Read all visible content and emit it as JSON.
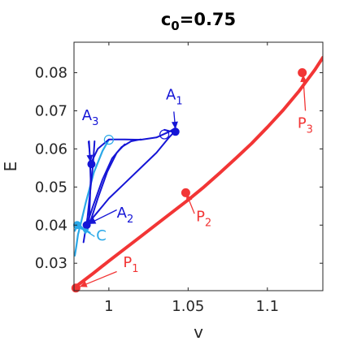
{
  "chart_data": {
    "type": "line",
    "title": {
      "base": "c",
      "sub": "0",
      "rest": "=0.75"
    },
    "xlabel": "v",
    "ylabel": "E",
    "xlim": [
      0.978,
      1.135
    ],
    "ylim": [
      0.0228,
      0.088
    ],
    "xticks": [
      1,
      1.05,
      1.1
    ],
    "xtick_labels": [
      "1",
      "1.05",
      "1.1"
    ],
    "yticks": [
      0.03,
      0.04,
      0.05,
      0.06,
      0.07,
      0.08
    ],
    "ytick_labels": [
      "0.03",
      "0.04",
      "0.05",
      "0.06",
      "0.07",
      "0.08"
    ],
    "grid": false,
    "colors": {
      "red": "#f23535",
      "blue": "#1515d6",
      "light_blue": "#2aa8e8"
    },
    "series": [
      {
        "color": "#f23535",
        "width": 4,
        "x": [
          0.978,
          0.99,
          1.0,
          1.01,
          1.02,
          1.03,
          1.04,
          1.05,
          1.06,
          1.07,
          1.08,
          1.09,
          1.1,
          1.11,
          1.12,
          1.13,
          1.135
        ],
        "y": [
          0.0235,
          0.0273,
          0.0306,
          0.0338,
          0.037,
          0.0402,
          0.0434,
          0.0466,
          0.05,
          0.0537,
          0.0575,
          0.0614,
          0.0657,
          0.0702,
          0.0752,
          0.0808,
          0.084
        ]
      },
      {
        "color": "#2aa8e8",
        "width": 2.2,
        "x": [
          0.9785,
          0.9795,
          0.9805,
          0.9825,
          0.9855,
          0.9905,
          0.996,
          1.0
        ],
        "y": [
          0.032,
          0.0345,
          0.0375,
          0.0408,
          0.046,
          0.0538,
          0.0595,
          0.0624
        ]
      },
      {
        "color": "#2aa8e8",
        "width": 2.2,
        "x": [
          0.9785,
          0.98,
          0.981,
          0.983
        ],
        "y": [
          0.0385,
          0.04,
          0.0398,
          0.039
        ]
      },
      {
        "color": "#2aa8e8",
        "width": 2.2,
        "x": [
          0.981,
          0.984,
          0.986,
          0.988
        ],
        "y": [
          0.0402,
          0.039,
          0.0385,
          0.038
        ]
      },
      {
        "color": "#1515d6",
        "width": 2,
        "x": [
          0.984,
          0.9865,
          0.9885,
          0.99,
          0.991
        ],
        "y": [
          0.0355,
          0.042,
          0.05,
          0.056,
          0.062
        ]
      },
      {
        "color": "#1515d6",
        "width": 2,
        "x": [
          0.9875,
          0.988,
          0.9885,
          0.988,
          0.9875
        ],
        "y": [
          0.062,
          0.058,
          0.052,
          0.046,
          0.041
        ]
      },
      {
        "color": "#1515d6",
        "width": 2,
        "x": [
          0.986,
          0.988,
          0.992,
          1.0,
          1.01,
          1.02,
          1.03,
          1.038,
          1.042
        ],
        "y": [
          0.04,
          0.041,
          0.043,
          0.047,
          0.051,
          0.055,
          0.059,
          0.063,
          0.0648
        ]
      },
      {
        "color": "#1515d6",
        "width": 2,
        "x": [
          0.986,
          0.99,
          0.996,
          1.002,
          1.008,
          1.014,
          1.02
        ],
        "y": [
          0.04,
          0.045,
          0.052,
          0.0575,
          0.0605,
          0.062,
          0.0625
        ]
      },
      {
        "color": "#1515d6",
        "width": 2,
        "x": [
          0.988,
          0.993,
          0.999,
          1.005,
          1.01
        ],
        "y": [
          0.0405,
          0.047,
          0.054,
          0.059,
          0.0612
        ]
      },
      {
        "color": "#1515d6",
        "width": 2,
        "x": [
          0.989,
          0.993,
          1.0,
          1.01,
          1.02,
          1.03,
          1.038,
          1.042
        ],
        "y": [
          0.0565,
          0.06,
          0.0625,
          0.0625,
          0.0624,
          0.063,
          0.0645,
          0.0655
        ]
      },
      {
        "color": "#1515d6",
        "width": 2,
        "x": [
          1.035,
          1.04,
          1.043
        ],
        "y": [
          0.065,
          0.0645,
          0.064
        ]
      }
    ],
    "points": [
      {
        "x": 0.9792,
        "y": 0.0235,
        "color": "#f23535",
        "style": "filled",
        "size": 5
      },
      {
        "x": 1.0485,
        "y": 0.0485,
        "color": "#f23535",
        "style": "filled",
        "size": 5
      },
      {
        "x": 1.122,
        "y": 0.08,
        "color": "#f23535",
        "style": "filled",
        "size": 5
      },
      {
        "x": 1.042,
        "y": 0.0645,
        "color": "#1515d6",
        "style": "filled",
        "size": 4.5
      },
      {
        "x": 0.986,
        "y": 0.04,
        "color": "#1515d6",
        "style": "filled",
        "size": 4.5
      },
      {
        "x": 0.989,
        "y": 0.056,
        "color": "#1515d6",
        "style": "filled",
        "size": 4.5
      },
      {
        "x": 0.98,
        "y": 0.04,
        "color": "#2aa8e8",
        "style": "filled",
        "size": 4.5
      },
      {
        "x": 1.0,
        "y": 0.0624,
        "color": "#2aa8e8",
        "style": "open",
        "size": 5.5
      },
      {
        "x": 1.035,
        "y": 0.0638,
        "color": "#1515d6",
        "style": "open",
        "size": 5.5
      }
    ],
    "annotations": [
      {
        "base": "P",
        "sub": "1",
        "color": "#f23535",
        "text_x": 1.009,
        "text_y": 0.029,
        "arrow_from": [
          1.005,
          0.0278
        ],
        "arrow_to": [
          0.9815,
          0.0238
        ]
      },
      {
        "base": "P",
        "sub": "2",
        "color": "#f23535",
        "text_x": 1.055,
        "text_y": 0.041,
        "arrow_from": [
          1.054,
          0.043
        ],
        "arrow_to": [
          1.049,
          0.0482
        ]
      },
      {
        "base": "P",
        "sub": "3",
        "color": "#f23535",
        "text_x": 1.119,
        "text_y": 0.0655,
        "arrow_from": [
          1.124,
          0.07
        ],
        "arrow_to": [
          1.1225,
          0.0795
        ]
      },
      {
        "base": "A",
        "sub": "1",
        "color": "#1515d6",
        "text_x": 1.036,
        "text_y": 0.073,
        "arrow_from": [
          1.041,
          0.0698
        ],
        "arrow_to": [
          1.042,
          0.0652
        ]
      },
      {
        "base": "A",
        "sub": "2",
        "color": "#1515d6",
        "text_x": 1.005,
        "text_y": 0.042,
        "arrow_from": [
          1.005,
          0.044
        ],
        "arrow_to": [
          0.987,
          0.0403
        ]
      },
      {
        "base": "A",
        "sub": "3",
        "color": "#1515d6",
        "text_x": 0.983,
        "text_y": 0.0675,
        "arrow_from": [
          0.987,
          0.062
        ],
        "arrow_to": [
          0.9885,
          0.0565
        ]
      },
      {
        "base": "C",
        "sub": "",
        "color": "#2aa8e8",
        "text_x": 0.992,
        "text_y": 0.036,
        "arrow_from": [
          0.991,
          0.037
        ],
        "arrow_to": [
          0.9825,
          0.0393
        ]
      }
    ]
  }
}
